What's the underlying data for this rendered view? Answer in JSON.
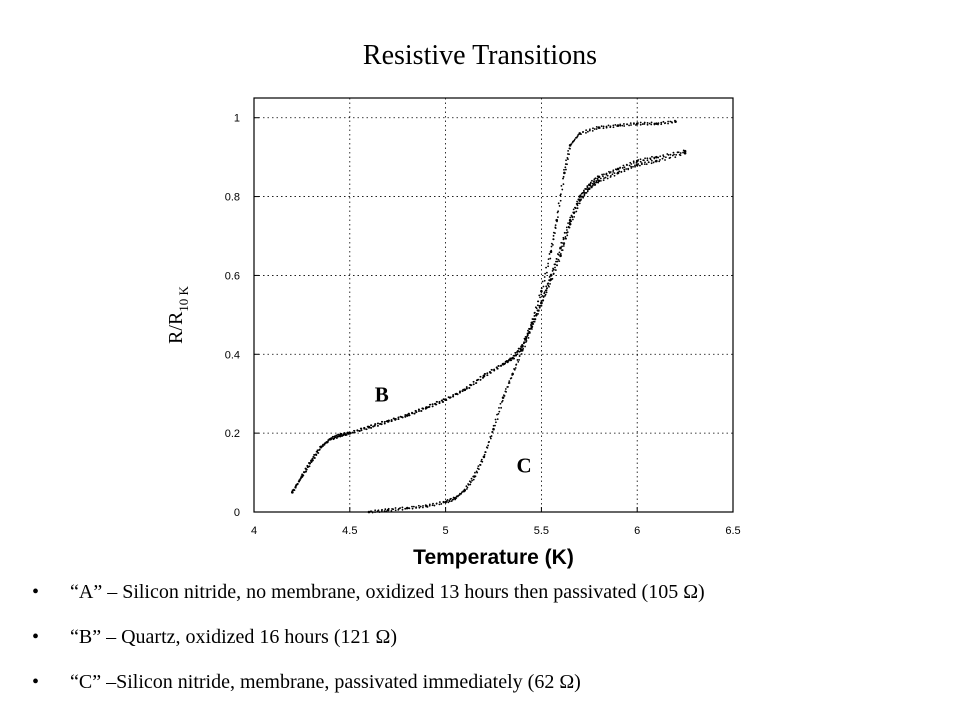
{
  "title": "Resistive Transitions",
  "notes": [
    "“A” – Silicon nitride, no membrane, oxidized 13 hours then passivated (105 Ω)",
    "“B” – Quartz, oxidized 16 hours (121 Ω)",
    "“C” –Silicon nitride, membrane, passivated immediately (62 Ω)"
  ],
  "bullet": "•",
  "chart_data": {
    "type": "scatter",
    "title": "",
    "xlabel": "Temperature (K)",
    "ylabel_main": "R/R",
    "ylabel_sub": "10 K",
    "xlim": [
      4,
      6.5
    ],
    "ylim": [
      0,
      1.05
    ],
    "xticks": [
      "4",
      "4.5",
      "5",
      "5.5",
      "6",
      "6.5"
    ],
    "yticks": [
      "0",
      "0.2",
      "0.4",
      "0.6",
      "0.8",
      "1"
    ],
    "grid": true,
    "annotations": [
      {
        "text": "B",
        "x": 4.63,
        "y": 0.28
      },
      {
        "text": "C",
        "x": 5.37,
        "y": 0.1
      }
    ],
    "series": [
      {
        "x": [
          4.2,
          4.25,
          4.3,
          4.35,
          4.4,
          4.45,
          4.5,
          4.6,
          4.7,
          4.8,
          4.9,
          5.0,
          5.1,
          5.2,
          5.3,
          5.35,
          5.4,
          5.45,
          5.5,
          5.55,
          5.58,
          5.62,
          5.65,
          5.7,
          5.8,
          5.9,
          6.0,
          6.1,
          6.2
        ],
        "y": [
          0.05,
          0.09,
          0.13,
          0.165,
          0.185,
          0.195,
          0.2,
          0.215,
          0.23,
          0.245,
          0.265,
          0.285,
          0.31,
          0.345,
          0.375,
          0.39,
          0.42,
          0.48,
          0.56,
          0.66,
          0.74,
          0.86,
          0.93,
          0.96,
          0.975,
          0.98,
          0.985,
          0.985,
          0.99
        ]
      },
      {
        "x": [
          4.2,
          4.25,
          4.3,
          4.35,
          4.4,
          4.45,
          4.5,
          4.6,
          4.7,
          4.8,
          4.9,
          5.0,
          5.1,
          5.2,
          5.3,
          5.35,
          5.4,
          5.45,
          5.5,
          5.55,
          5.6,
          5.65,
          5.7,
          5.75,
          5.8,
          5.9,
          6.0,
          6.1,
          6.25
        ],
        "y": [
          0.05,
          0.09,
          0.13,
          0.165,
          0.185,
          0.195,
          0.2,
          0.215,
          0.23,
          0.245,
          0.265,
          0.285,
          0.31,
          0.345,
          0.375,
          0.39,
          0.42,
          0.47,
          0.53,
          0.6,
          0.67,
          0.74,
          0.8,
          0.83,
          0.85,
          0.87,
          0.89,
          0.9,
          0.915
        ]
      },
      {
        "x": [
          4.6,
          4.7,
          4.8,
          4.9,
          5.0,
          5.05,
          5.1,
          5.15,
          5.2,
          5.25,
          5.3,
          5.35,
          5.4,
          5.45,
          5.5,
          5.55,
          5.6,
          5.65,
          5.7,
          5.75,
          5.8,
          5.9,
          6.0,
          6.1,
          6.25
        ],
        "y": [
          0.0,
          0.005,
          0.01,
          0.015,
          0.025,
          0.035,
          0.055,
          0.09,
          0.14,
          0.21,
          0.29,
          0.35,
          0.41,
          0.47,
          0.53,
          0.59,
          0.65,
          0.73,
          0.79,
          0.82,
          0.84,
          0.86,
          0.88,
          0.89,
          0.91
        ]
      }
    ]
  }
}
